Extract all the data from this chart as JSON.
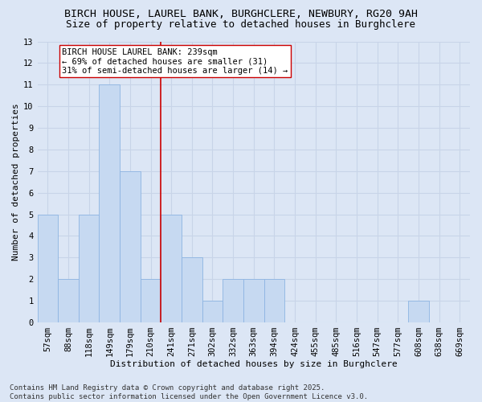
{
  "title": "BIRCH HOUSE, LAUREL BANK, BURGHCLERE, NEWBURY, RG20 9AH",
  "subtitle": "Size of property relative to detached houses in Burghclere",
  "xlabel": "Distribution of detached houses by size in Burghclere",
  "ylabel": "Number of detached properties",
  "categories": [
    "57sqm",
    "88sqm",
    "118sqm",
    "149sqm",
    "179sqm",
    "210sqm",
    "241sqm",
    "271sqm",
    "302sqm",
    "332sqm",
    "363sqm",
    "394sqm",
    "424sqm",
    "455sqm",
    "485sqm",
    "516sqm",
    "547sqm",
    "577sqm",
    "608sqm",
    "638sqm",
    "669sqm"
  ],
  "values": [
    5,
    2,
    5,
    11,
    7,
    2,
    5,
    3,
    1,
    2,
    2,
    2,
    0,
    0,
    0,
    0,
    0,
    0,
    1,
    0,
    0
  ],
  "bar_color": "#c6d9f1",
  "bar_edge_color": "#8db4e2",
  "vline_index": 6,
  "vline_color": "#cc0000",
  "annotation_text": "BIRCH HOUSE LAUREL BANK: 239sqm\n← 69% of detached houses are smaller (31)\n31% of semi-detached houses are larger (14) →",
  "annotation_box_color": "white",
  "annotation_box_edge": "#cc0000",
  "ylim": [
    0,
    13
  ],
  "yticks": [
    0,
    1,
    2,
    3,
    4,
    5,
    6,
    7,
    8,
    9,
    10,
    11,
    12,
    13
  ],
  "grid_color": "#c8d4e8",
  "background_color": "#dce6f5",
  "footer_text": "Contains HM Land Registry data © Crown copyright and database right 2025.\nContains public sector information licensed under the Open Government Licence v3.0.",
  "title_fontsize": 9.5,
  "subtitle_fontsize": 9,
  "axis_label_fontsize": 8,
  "tick_fontsize": 7.5,
  "annotation_fontsize": 7.5,
  "footer_fontsize": 6.5
}
